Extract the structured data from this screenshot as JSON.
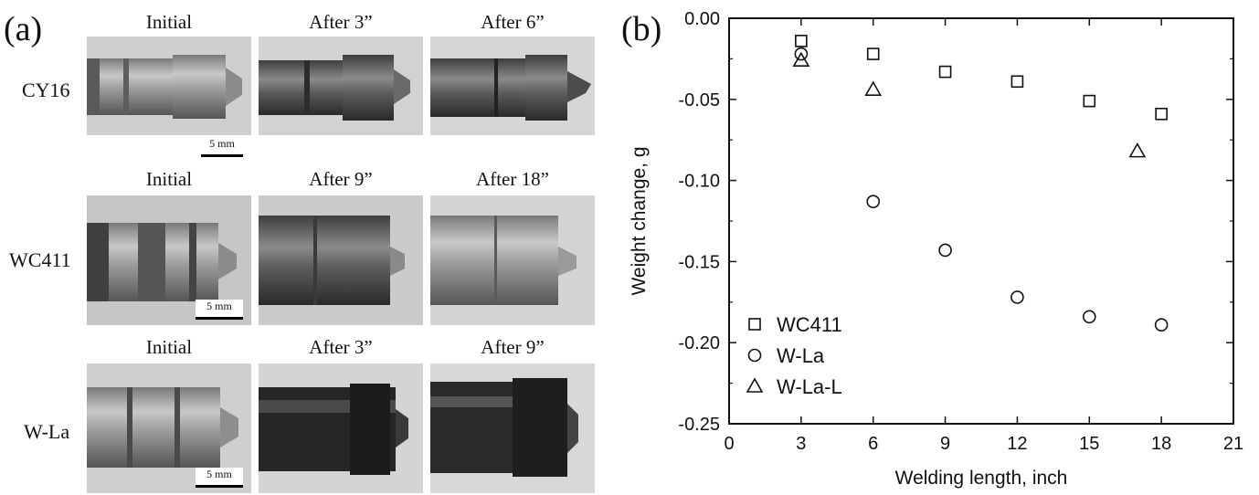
{
  "panel_a": {
    "label": "(a)",
    "rows": [
      {
        "name": "CY16",
        "columns": [
          "Initial",
          "After 3”",
          "After 6”"
        ],
        "scale": "5 mm"
      },
      {
        "name": "WC411",
        "columns": [
          "Initial",
          "After 9”",
          "After 18”"
        ],
        "scale": "5 mm"
      },
      {
        "name": "W-La",
        "columns": [
          "Initial",
          "After 3”",
          "After 9”"
        ],
        "scale": "5 mm"
      }
    ]
  },
  "panel_b": {
    "label": "(b)"
  },
  "chart_data": {
    "type": "scatter",
    "xlabel": "Welding length, inch",
    "ylabel": "Weight change, g",
    "xlim": [
      0,
      21
    ],
    "ylim": [
      -0.25,
      0.0
    ],
    "xticks": [
      0,
      3,
      6,
      9,
      12,
      15,
      18,
      21
    ],
    "yticks": [
      0.0,
      -0.05,
      -0.1,
      -0.15,
      -0.2,
      -0.25
    ],
    "ytick_labels": [
      "0.00",
      "-0.05",
      "-0.10",
      "-0.15",
      "-0.20",
      "-0.25"
    ],
    "grid": false,
    "legend": "bottom-left",
    "series": [
      {
        "name": "WC411",
        "marker": "square",
        "x": [
          3,
          6,
          9,
          12,
          15,
          18
        ],
        "y": [
          -0.014,
          -0.022,
          -0.033,
          -0.039,
          -0.051,
          -0.059
        ]
      },
      {
        "name": "W-La",
        "marker": "circle",
        "x": [
          3,
          6,
          9,
          12,
          15,
          18
        ],
        "y": [
          -0.022,
          -0.113,
          -0.143,
          -0.172,
          -0.184,
          -0.189
        ]
      },
      {
        "name": "W-La-L",
        "marker": "triangle",
        "x": [
          3,
          6,
          17
        ],
        "y": [
          -0.026,
          -0.044,
          -0.082
        ]
      }
    ]
  }
}
